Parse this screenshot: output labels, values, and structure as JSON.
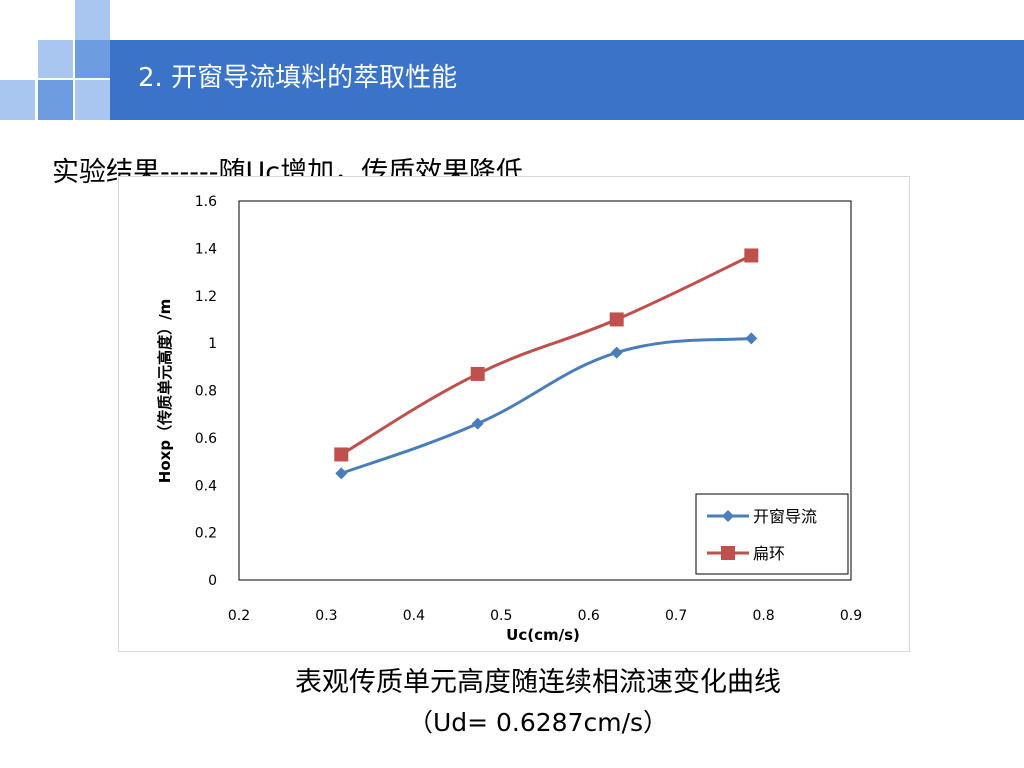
{
  "slide": {
    "title": "2. 开窗导流填料的萃取性能",
    "subtitle": "实验结果------随Uc增加，传质效果降低",
    "caption_line1": "表观传质单元高度随连续相流速变化曲线",
    "caption_line2": "（Ud= 0.6287cm/s）"
  },
  "colors": {
    "title_bar": "#3a73c8",
    "series_blue": "#4a7ebb",
    "series_red": "#c0504d",
    "deco_light": "#a9c6f0",
    "deco_mid": "#6d9de0"
  },
  "chart_data": {
    "type": "line",
    "xlabel": "Uc(cm/s)",
    "ylabel": "Hoxp（传质单元高度）/m",
    "xlim": [
      0.2,
      0.9
    ],
    "ylim": [
      0,
      1.6
    ],
    "xticks": [
      "0.2",
      "0.3",
      "0.4",
      "0.5",
      "0.6",
      "0.7",
      "0.8",
      "0.9"
    ],
    "yticks": [
      "0",
      "0.2",
      "0.4",
      "0.6",
      "0.8",
      "1",
      "1.2",
      "1.4",
      "1.6"
    ],
    "legend_position": "bottom-right",
    "grid": false,
    "series": [
      {
        "name": "开窗导流",
        "marker": "diamond",
        "color": "#4a7ebb",
        "x": [
          0.317,
          0.473,
          0.632,
          0.786
        ],
        "y": [
          0.45,
          0.66,
          0.96,
          1.02
        ]
      },
      {
        "name": "扁环",
        "marker": "square",
        "color": "#c0504d",
        "x": [
          0.317,
          0.473,
          0.632,
          0.786
        ],
        "y": [
          0.53,
          0.87,
          1.1,
          1.37
        ]
      }
    ]
  }
}
